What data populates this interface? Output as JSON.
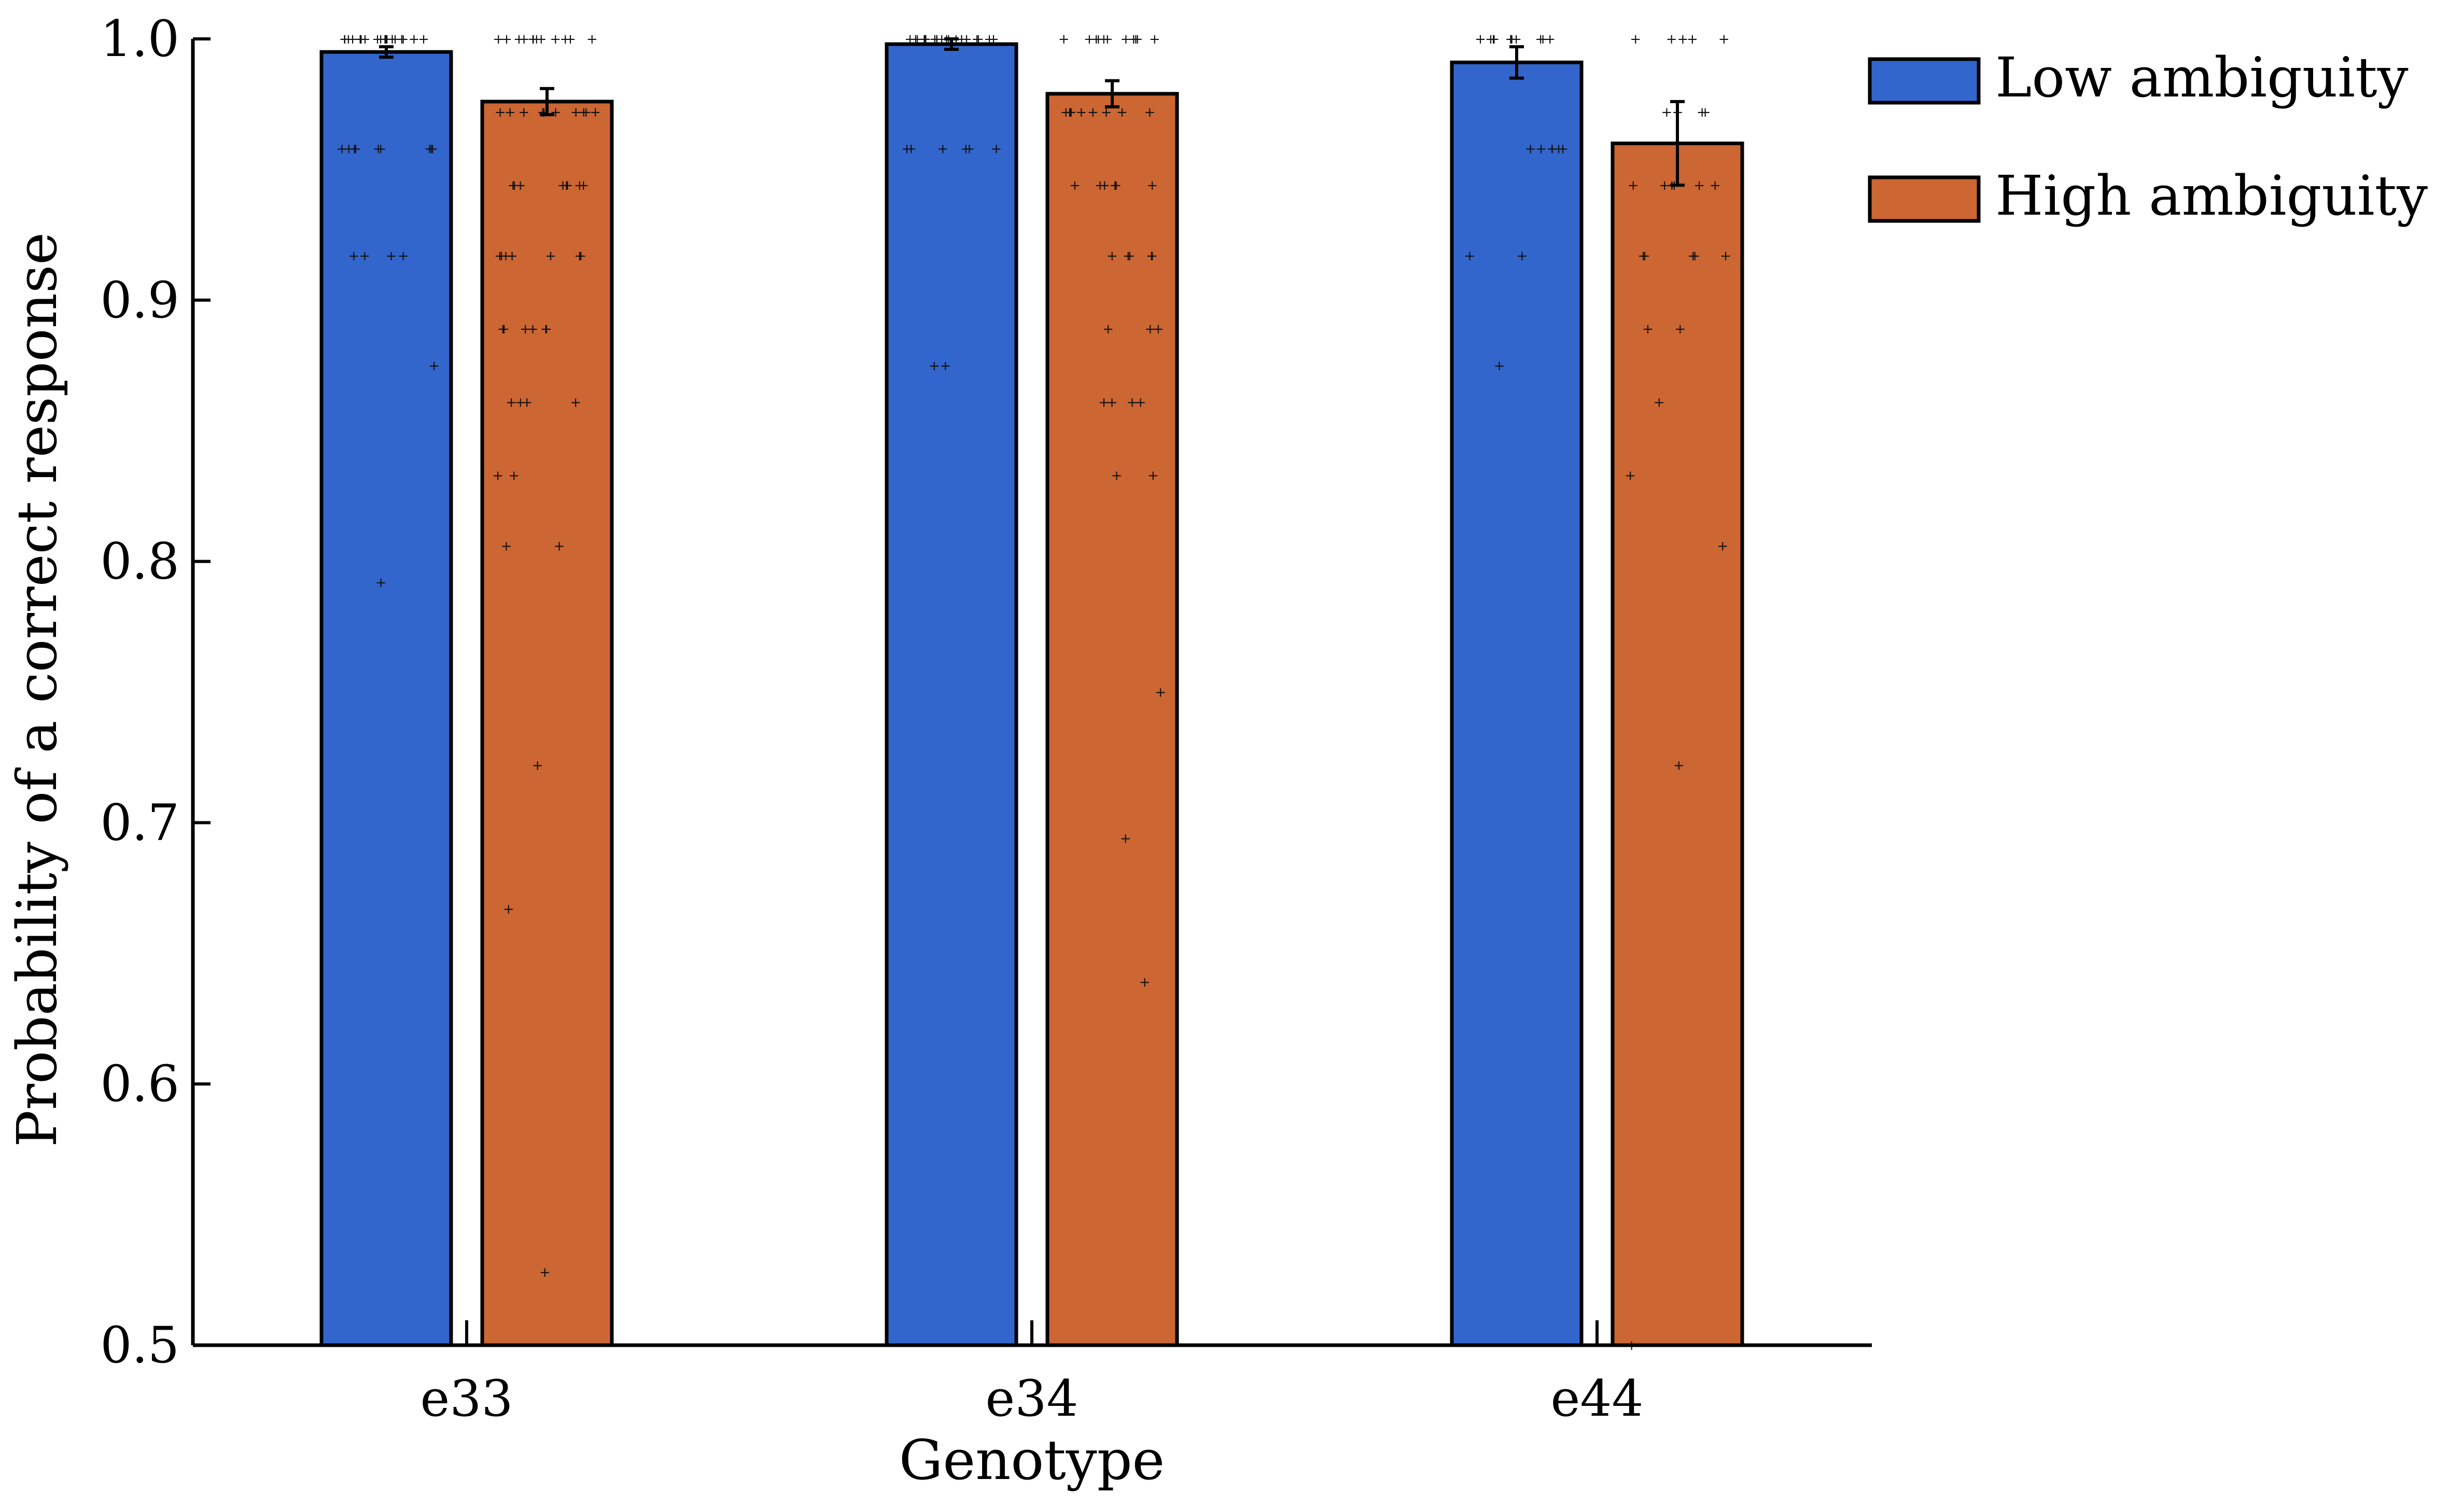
{
  "chart_data": {
    "type": "bar",
    "title": "",
    "xlabel": "Genotype",
    "ylabel": "Probability of a correct response",
    "ylim": [
      0.5,
      1.0
    ],
    "yticks": [
      "0.5",
      "0.6",
      "0.7",
      "0.8",
      "0.9",
      "1.0"
    ],
    "categories": [
      "e33",
      "e34",
      "e44"
    ],
    "grid": false,
    "legend_position": "top-right-outside",
    "series": [
      {
        "name": "Low ambiguity",
        "color": "#3366cc",
        "values": [
          0.995,
          0.998,
          0.991
        ],
        "errors": [
          0.002,
          0.002,
          0.006
        ],
        "points": [
          [
            1.0,
            1.0,
            1.0,
            1.0,
            1.0,
            1.0,
            1.0,
            1.0,
            1.0,
            1.0,
            1.0,
            1.0,
            1.0,
            1.0,
            1.0,
            1.0,
            1.0,
            1.0,
            1.0,
            1.0,
            0.958,
            0.958,
            0.958,
            0.958,
            0.958,
            0.958,
            0.958,
            0.958,
            0.958,
            0.917,
            0.917,
            0.917,
            0.917,
            0.875,
            0.792
          ],
          [
            1.0,
            1.0,
            1.0,
            1.0,
            1.0,
            1.0,
            1.0,
            1.0,
            1.0,
            1.0,
            1.0,
            1.0,
            1.0,
            1.0,
            1.0,
            1.0,
            1.0,
            1.0,
            1.0,
            1.0,
            0.958,
            0.958,
            0.958,
            0.958,
            0.958,
            0.958,
            0.875,
            0.875
          ],
          [
            1.0,
            1.0,
            1.0,
            1.0,
            1.0,
            1.0,
            1.0,
            1.0,
            1.0,
            1.0,
            1.0,
            0.958,
            0.958,
            0.958,
            0.958,
            0.958,
            0.958,
            0.917,
            0.917,
            0.875
          ]
        ]
      },
      {
        "name": "High ambiguity",
        "color": "#cc6633",
        "values": [
          0.976,
          0.979,
          0.96
        ],
        "errors": [
          0.005,
          0.005,
          0.016
        ],
        "points": [
          [
            1.0,
            1.0,
            1.0,
            1.0,
            1.0,
            1.0,
            1.0,
            1.0,
            1.0,
            1.0,
            1.0,
            1.0,
            0.972,
            0.972,
            0.972,
            0.972,
            0.972,
            0.972,
            0.972,
            0.972,
            0.972,
            0.972,
            0.944,
            0.944,
            0.944,
            0.944,
            0.944,
            0.944,
            0.944,
            0.944,
            0.917,
            0.917,
            0.917,
            0.917,
            0.917,
            0.917,
            0.917,
            0.889,
            0.889,
            0.889,
            0.889,
            0.889,
            0.889,
            0.861,
            0.861,
            0.861,
            0.861,
            0.833,
            0.833,
            0.806,
            0.806,
            0.722,
            0.667,
            0.528
          ],
          [
            1.0,
            1.0,
            1.0,
            1.0,
            1.0,
            1.0,
            1.0,
            1.0,
            1.0,
            1.0,
            1.0,
            0.972,
            0.972,
            0.972,
            0.972,
            0.972,
            0.972,
            0.972,
            0.972,
            0.972,
            0.944,
            0.944,
            0.944,
            0.944,
            0.944,
            0.944,
            0.917,
            0.917,
            0.917,
            0.917,
            0.917,
            0.889,
            0.889,
            0.889,
            0.861,
            0.861,
            0.861,
            0.861,
            0.833,
            0.833,
            0.75,
            0.694,
            0.639
          ],
          [
            1.0,
            1.0,
            1.0,
            1.0,
            1.0,
            0.972,
            0.972,
            0.972,
            0.972,
            0.944,
            0.944,
            0.944,
            0.944,
            0.944,
            0.944,
            0.917,
            0.917,
            0.917,
            0.917,
            0.917,
            0.889,
            0.889,
            0.861,
            0.833,
            0.806,
            0.722,
            0.5
          ]
        ]
      }
    ]
  }
}
